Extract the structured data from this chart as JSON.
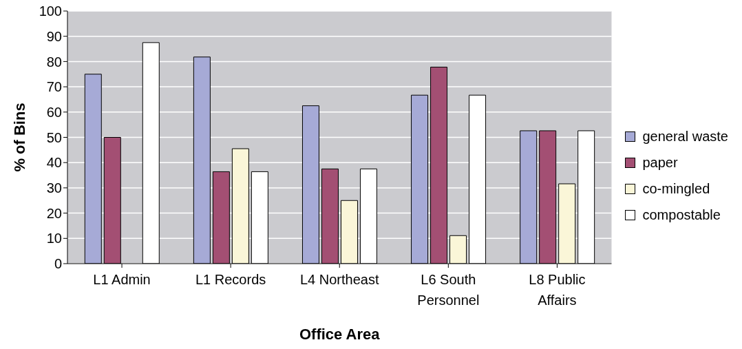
{
  "chart_data": {
    "type": "bar",
    "xlabel": "Office Area",
    "ylabel": "% of Bins",
    "categories": [
      "L1 Admin",
      "L1 Records",
      "L4 Northeast",
      "L6 South Personnel",
      "L8 Public Affairs"
    ],
    "series": [
      {
        "name": "general waste",
        "color": "#a6aad6",
        "values": [
          75,
          81.8,
          62.5,
          66.7,
          52.6
        ]
      },
      {
        "name": "paper",
        "color": "#a34f73",
        "values": [
          50,
          36.4,
          37.5,
          77.8,
          52.6
        ]
      },
      {
        "name": "co-mingled",
        "color": "#faf6d8",
        "values": [
          0,
          45.5,
          25,
          11.1,
          31.6
        ]
      },
      {
        "name": "compostable",
        "color": "#ffffff",
        "values": [
          87.5,
          36.4,
          37.5,
          66.7,
          52.6
        ]
      }
    ],
    "ylim": [
      0,
      100
    ],
    "yticks": [
      0,
      10,
      20,
      30,
      40,
      50,
      60,
      70,
      80,
      90,
      100
    ],
    "grid": "y",
    "legend": "right"
  }
}
